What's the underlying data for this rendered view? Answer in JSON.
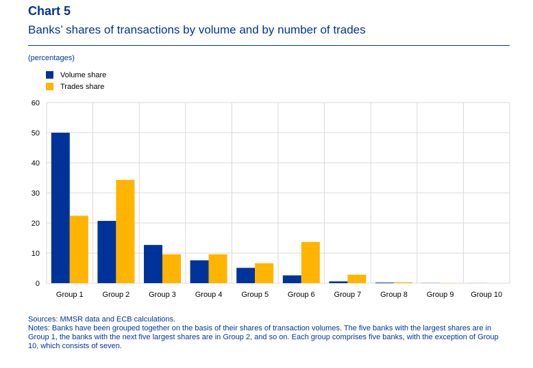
{
  "header": {
    "chart_number": "Chart 5",
    "title": "Banks’ shares of transactions by volume and by number of trades",
    "units": "(percentages)"
  },
  "colors": {
    "volume": "#003399",
    "trades": "#FFB400",
    "title": "#003399"
  },
  "chart_data": {
    "type": "bar",
    "categories": [
      "Group 1",
      "Group 2",
      "Group 3",
      "Group 4",
      "Group 5",
      "Group 6",
      "Group 7",
      "Group 8",
      "Group 9",
      "Group 10"
    ],
    "series": [
      {
        "name": "Volume share",
        "values": [
          50,
          20.7,
          12.7,
          7.6,
          5.1,
          2.6,
          0.6,
          0.2,
          0.05,
          0.02
        ]
      },
      {
        "name": "Trades share",
        "values": [
          22.4,
          34.3,
          9.6,
          9.6,
          6.6,
          13.7,
          2.8,
          0.3,
          0.05,
          0.02
        ]
      }
    ],
    "ylim": [
      0,
      60
    ],
    "yticks": [
      0,
      10,
      20,
      30,
      40,
      50,
      60
    ],
    "grid": true,
    "legend_position": "top-left",
    "title": "",
    "xlabel": "",
    "ylabel": ""
  },
  "footer": {
    "sources": "Sources: MMSR data and ECB calculations.",
    "notes": "Notes: Banks have been grouped together on the basis of their shares of transaction volumes. The five banks with the largest shares are in Group 1, the banks with the next five largest shares are in Group 2, and so on. Each group comprises five banks, with the exception of Group 10, which consists of seven."
  }
}
